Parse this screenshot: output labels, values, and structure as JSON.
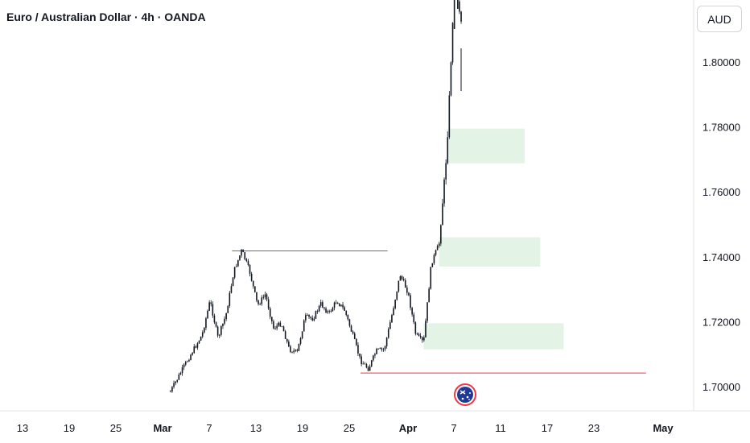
{
  "header": {
    "title": "Euro / Australian Dollar · 4h · OANDA"
  },
  "price_axis": {
    "currency": "AUD"
  },
  "colors": {
    "up": "#089981",
    "down": "#f23645",
    "candle": "#131722",
    "zone_fill": "#e3f3e6",
    "level_line": "#f23645",
    "axis_line": "#e0e3eb",
    "text": "#131722"
  },
  "chart_data": {
    "type": "candlestick",
    "title": "Euro / Australian Dollar · 4h · OANDA",
    "y_ticks": [
      "1.80000",
      "1.78000",
      "1.76000",
      "1.74000",
      "1.72000",
      "1.70000"
    ],
    "y_tick_values": [
      1.8,
      1.78,
      1.76,
      1.74,
      1.72,
      1.7
    ],
    "x_ticks": [
      {
        "label": "13",
        "bold": false
      },
      {
        "label": "19",
        "bold": false
      },
      {
        "label": "25",
        "bold": false
      },
      {
        "label": "Mar",
        "bold": true
      },
      {
        "label": "7",
        "bold": false
      },
      {
        "label": "13",
        "bold": false
      },
      {
        "label": "19",
        "bold": false
      },
      {
        "label": "25",
        "bold": false
      },
      {
        "label": "Apr",
        "bold": true
      },
      {
        "label": "7",
        "bold": false
      },
      {
        "label": "11",
        "bold": false
      },
      {
        "label": "17",
        "bold": false
      },
      {
        "label": "23",
        "bold": false
      },
      {
        "label": "May",
        "bold": true
      }
    ],
    "price_path": [
      {
        "date": "2025-03-02",
        "price": 1.6985
      },
      {
        "date": "2025-03-04",
        "price": 1.7075
      },
      {
        "date": "2025-03-06",
        "price": 1.716
      },
      {
        "date": "2025-03-07",
        "price": 1.7265
      },
      {
        "date": "2025-03-08",
        "price": 1.715
      },
      {
        "date": "2025-03-09",
        "price": 1.722
      },
      {
        "date": "2025-03-10",
        "price": 1.7355
      },
      {
        "date": "2025-03-11",
        "price": 1.742
      },
      {
        "date": "2025-03-12",
        "price": 1.7355
      },
      {
        "date": "2025-03-13",
        "price": 1.725
      },
      {
        "date": "2025-03-14",
        "price": 1.7285
      },
      {
        "date": "2025-03-15",
        "price": 1.718
      },
      {
        "date": "2025-03-16",
        "price": 1.7195
      },
      {
        "date": "2025-03-17",
        "price": 1.7115
      },
      {
        "date": "2025-03-18",
        "price": 1.7105
      },
      {
        "date": "2025-03-19",
        "price": 1.7215
      },
      {
        "date": "2025-03-20",
        "price": 1.721
      },
      {
        "date": "2025-03-21",
        "price": 1.7255
      },
      {
        "date": "2025-03-22",
        "price": 1.7225
      },
      {
        "date": "2025-03-23",
        "price": 1.7265
      },
      {
        "date": "2025-03-24",
        "price": 1.7235
      },
      {
        "date": "2025-03-25",
        "price": 1.716
      },
      {
        "date": "2025-03-26",
        "price": 1.708
      },
      {
        "date": "2025-03-27",
        "price": 1.7055
      },
      {
        "date": "2025-03-28",
        "price": 1.711
      },
      {
        "date": "2025-03-29",
        "price": 1.7115
      },
      {
        "date": "2025-03-30",
        "price": 1.7225
      },
      {
        "date": "2025-03-31",
        "price": 1.7345
      },
      {
        "date": "2025-04-01",
        "price": 1.729
      },
      {
        "date": "2025-04-02",
        "price": 1.716
      },
      {
        "date": "2025-04-03",
        "price": 1.7135
      },
      {
        "date": "2025-04-04",
        "price": 1.738
      },
      {
        "date": "2025-04-05",
        "price": 1.744
      },
      {
        "date": "2025-04-06",
        "price": 1.773
      },
      {
        "date": "2025-04-07",
        "price": 1.825
      },
      {
        "date": "2025-04-08",
        "price": 1.81
      }
    ],
    "annotations": {
      "resistance_line": {
        "price": 1.7418,
        "from": "2025-03-11",
        "to": "2025-03-28"
      },
      "support_line": {
        "price": 1.7042,
        "from": "2025-03-26",
        "to": "2025-05-02"
      },
      "demand_zones": [
        {
          "low": 1.7688,
          "high": 1.7795,
          "from": "2025-04-06",
          "to": "2025-04-16"
        },
        {
          "low": 1.737,
          "high": 1.746,
          "from": "2025-04-05",
          "to": "2025-04-18"
        },
        {
          "low": 1.7115,
          "high": 1.7195,
          "from": "2025-04-03",
          "to": "2025-04-21"
        }
      ]
    },
    "legend": "none",
    "grid": false
  }
}
